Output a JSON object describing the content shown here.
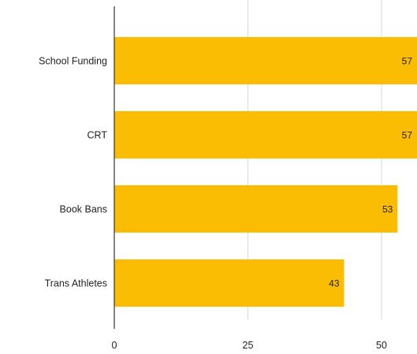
{
  "chart_data": {
    "type": "bar",
    "orientation": "horizontal",
    "categories": [
      "School Funding",
      "CRT",
      "Book Bans",
      "Trans Athletes"
    ],
    "values": [
      57,
      57,
      53,
      43
    ],
    "x_ticks": [
      "0",
      "25",
      "50"
    ],
    "xlim": [
      0,
      56
    ],
    "grid": true,
    "bar_color": "#FBBC04",
    "title": "",
    "xlabel": "",
    "ylabel": ""
  }
}
